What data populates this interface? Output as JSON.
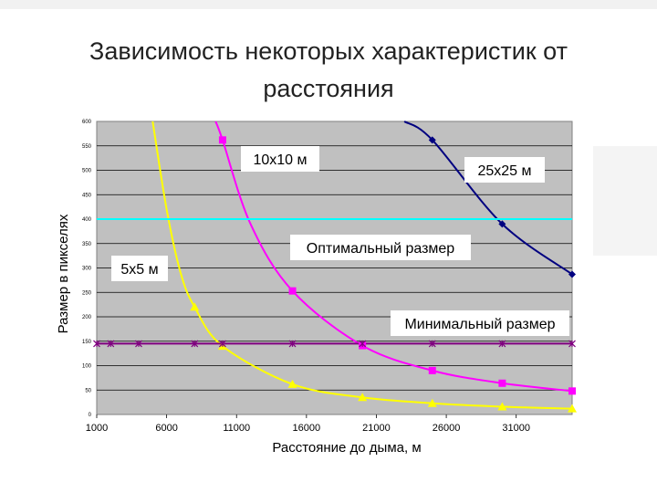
{
  "slide": {
    "title_line1": "Зависимость некоторых характеристик от",
    "title_line2": "расстояния"
  },
  "chart_data": {
    "type": "line",
    "xlabel": "Расстояние до дыма, м",
    "ylabel": "Размер в пикселях",
    "xlim": [
      1000,
      35000
    ],
    "ylim": [
      0,
      600
    ],
    "x_ticks": [
      "1000",
      "6000",
      "11000",
      "16000",
      "21000",
      "26000",
      "31000"
    ],
    "y_ticks": [
      "0",
      "50",
      "100",
      "150",
      "200",
      "250",
      "300",
      "350",
      "400",
      "450",
      "500",
      "550",
      "600"
    ],
    "grid": true,
    "background": "#c0c0c0",
    "series": [
      {
        "name": "5x5 м",
        "color": "#ffff00",
        "marker": "triangle",
        "x": [
          5000,
          6000,
          7000,
          8000,
          10000,
          15000,
          20000,
          25000,
          30000,
          35000
        ],
        "y": [
          600,
          420,
          290,
          220,
          140,
          62,
          35,
          23,
          16,
          12
        ],
        "marker_x": [
          8000,
          10000,
          15000,
          20000,
          25000,
          30000,
          35000
        ],
        "marker_y": [
          220,
          140,
          62,
          35,
          23,
          16,
          12
        ]
      },
      {
        "name": "10x10 м",
        "color": "#ff00ff",
        "marker": "square",
        "x": [
          9500,
          10000,
          12000,
          15000,
          20000,
          25000,
          30000,
          35000
        ],
        "y": [
          600,
          562,
          390,
          253,
          141,
          90,
          64,
          48
        ],
        "marker_x": [
          10000,
          15000,
          20000,
          25000,
          30000,
          35000
        ],
        "marker_y": [
          562,
          253,
          141,
          90,
          64,
          48
        ]
      },
      {
        "name": "25x25 м",
        "color": "#000080",
        "marker": "diamond",
        "x": [
          23000,
          25000,
          30000,
          35000
        ],
        "y": [
          600,
          562,
          390,
          287
        ],
        "marker_x": [
          25000,
          30000,
          35000
        ],
        "marker_y": [
          562,
          390,
          287
        ]
      },
      {
        "name": "Оптимальный размер",
        "color": "#00ffff",
        "marker": "none",
        "x": [
          1000,
          35000
        ],
        "y": [
          400,
          400
        ]
      },
      {
        "name": "Минимальный размер",
        "color": "#800080",
        "marker": "star",
        "x": [
          1000,
          35000
        ],
        "y": [
          145,
          145
        ],
        "marker_x": [
          1000,
          2000,
          4000,
          8000,
          10000,
          15000,
          20000,
          25000,
          30000,
          35000
        ],
        "marker_y": [
          145,
          145,
          145,
          145,
          145,
          145,
          145,
          145,
          145,
          145
        ]
      }
    ]
  }
}
